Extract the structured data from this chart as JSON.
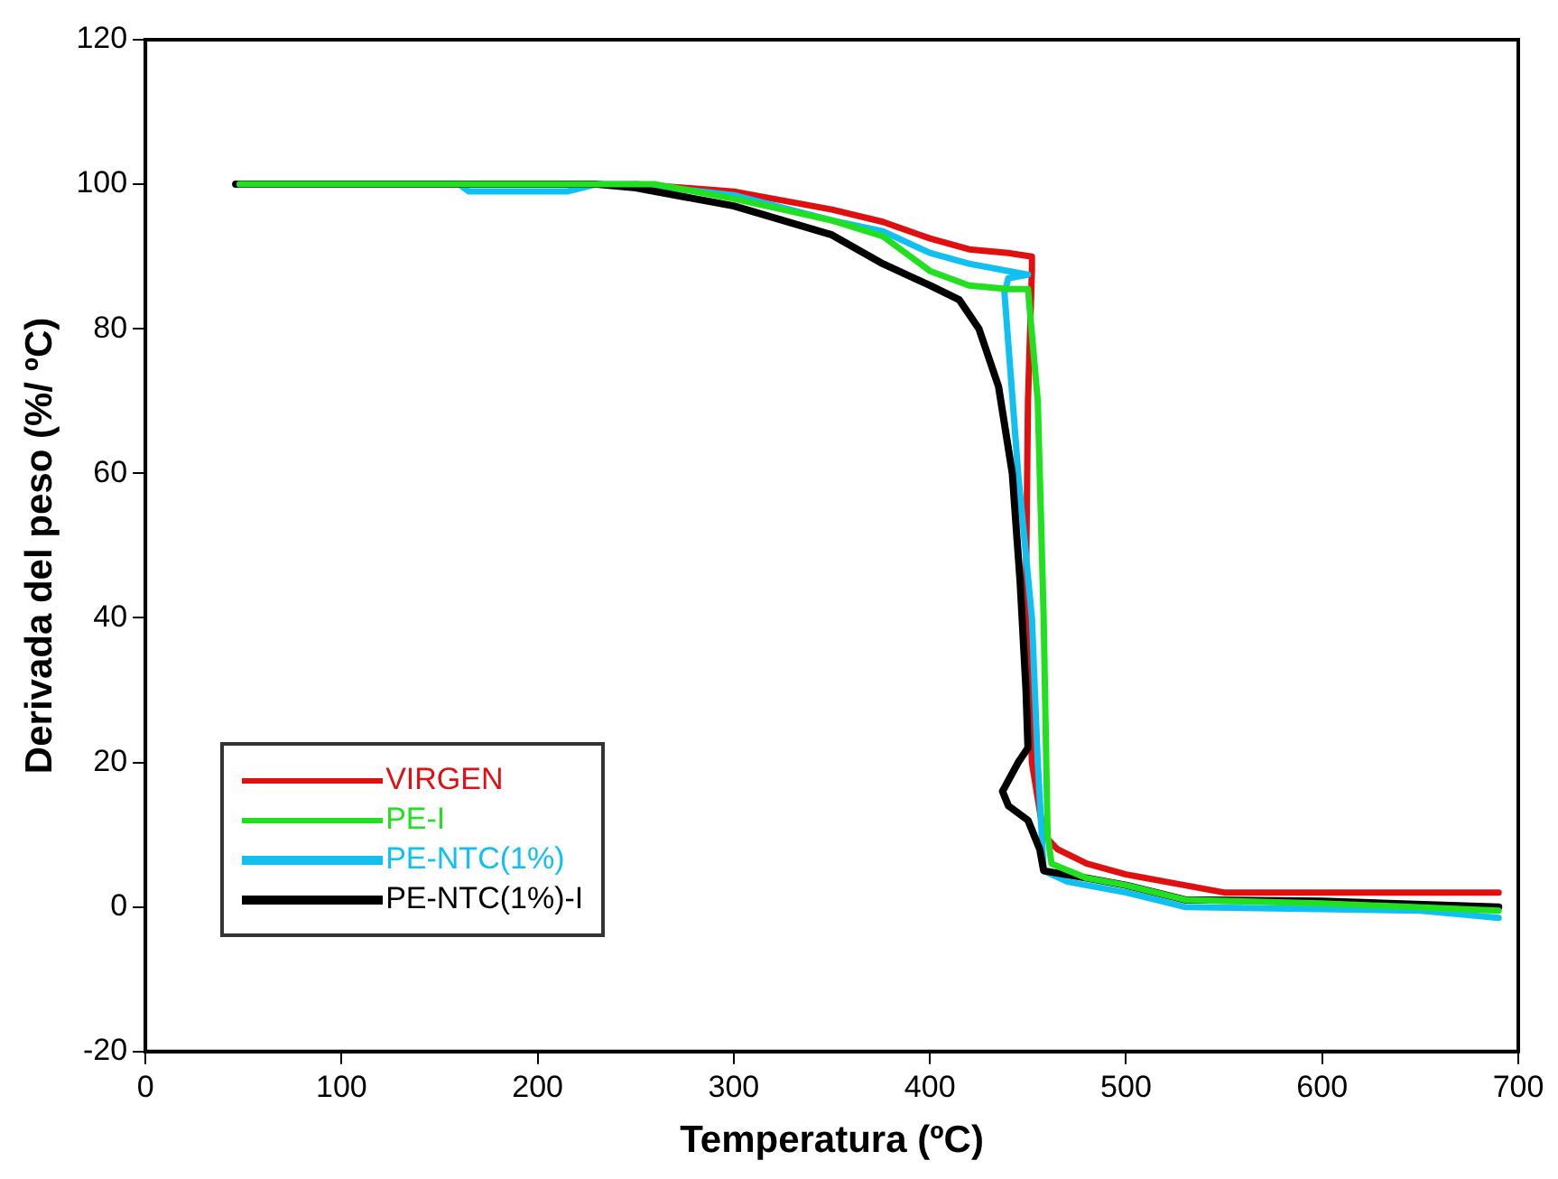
{
  "chart_data": {
    "type": "line",
    "xlabel": "Temperatura (ºC)",
    "ylabel": "Derivada del peso (%/ ºC)",
    "xlim": [
      0,
      700
    ],
    "xticks": [
      0,
      100,
      200,
      300,
      400,
      500,
      600,
      700
    ],
    "ylim": [
      -20,
      120
    ],
    "yticks": [
      -20,
      0,
      20,
      40,
      60,
      80,
      100,
      120
    ],
    "grid": false,
    "legend": "bottom left",
    "marker": "none",
    "line_style": "solid",
    "series": [
      {
        "name": "VIRGEN",
        "color": "#e01010",
        "x": [
          250,
          300,
          350,
          376,
          400,
          420,
          440,
          452,
          452,
          450,
          449,
          452,
          458,
          465,
          480,
          500,
          520,
          550,
          660,
          690
        ],
        "values": [
          100,
          99,
          96.5,
          94.8,
          92.5,
          91,
          90.5,
          90,
          88,
          70,
          45,
          20,
          10,
          8,
          6,
          4.5,
          3.5,
          2,
          2,
          2
        ]
      },
      {
        "name": "PE-I",
        "color": "#20e020",
        "x": [
          48,
          260,
          300,
          350,
          376,
          400,
          420,
          440,
          450,
          455,
          458,
          460,
          462,
          480,
          500,
          530,
          600,
          690
        ],
        "values": [
          100,
          100,
          98,
          95,
          92.8,
          88,
          86,
          85.5,
          85.5,
          70,
          40,
          10,
          6,
          4,
          3,
          1,
          0.5,
          -0.5
        ]
      },
      {
        "name": "PE-NTC(1%)",
        "color": "#10c0f0",
        "x": [
          160,
          165,
          215,
          230,
          250,
          300,
          350,
          376,
          400,
          420,
          440,
          450,
          440,
          438,
          445,
          452,
          455,
          458,
          470,
          500,
          530,
          650,
          690
        ],
        "values": [
          100,
          99,
          99,
          100,
          100,
          98.5,
          95,
          93.5,
          90.5,
          89,
          88,
          87.5,
          87,
          85,
          60,
          40,
          20,
          5,
          3.5,
          2,
          0,
          -0.5,
          -1.5
        ]
      },
      {
        "name": "PE-NTC(1%)-I",
        "color": "#000000",
        "x": [
          46,
          230,
          250,
          300,
          350,
          376,
          400,
          415,
          425,
          435,
          442,
          446,
          449,
          450,
          445,
          437,
          440,
          450,
          456,
          458,
          480,
          500,
          530,
          600,
          690
        ],
        "values": [
          100,
          100,
          99.5,
          97,
          93,
          89,
          86,
          84,
          80,
          72,
          60,
          45,
          30,
          22,
          20,
          16,
          14,
          12,
          8,
          5,
          4,
          3,
          1,
          0.8,
          0
        ]
      }
    ]
  }
}
